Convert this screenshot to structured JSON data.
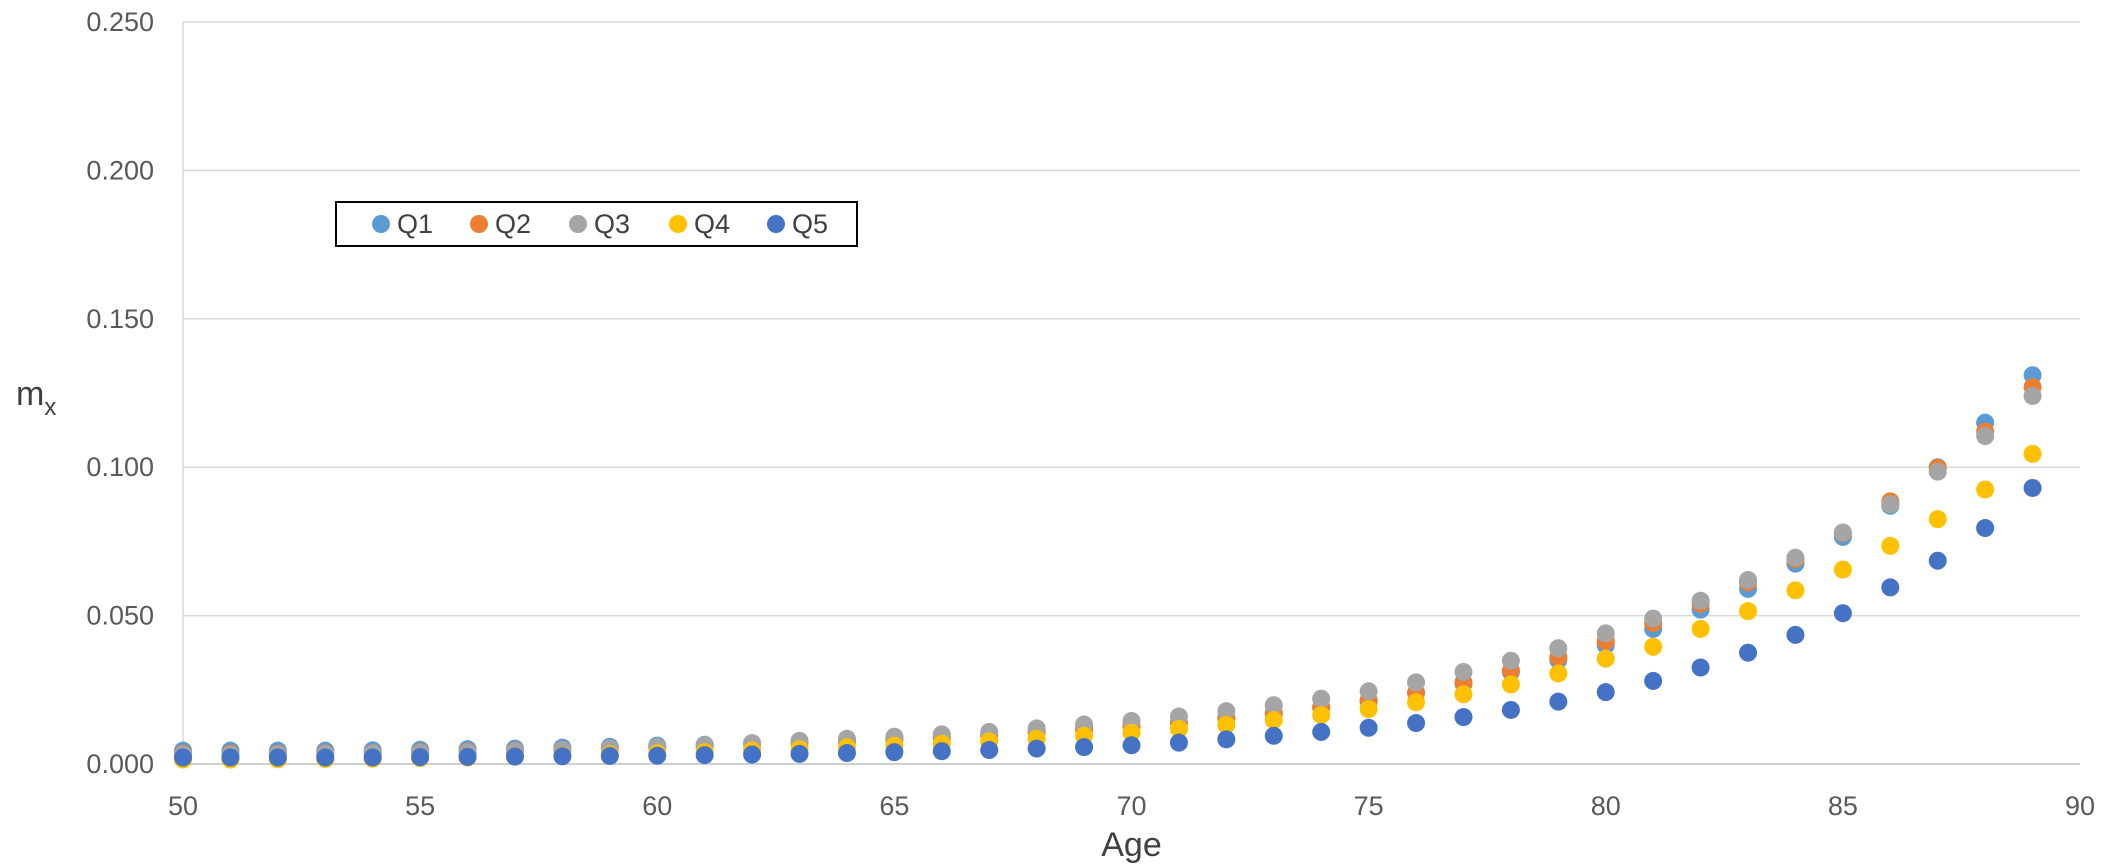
{
  "chart_data": {
    "type": "scatter",
    "title": "",
    "xlabel": "Age",
    "ylabel_main": "m",
    "ylabel_sub": "x",
    "xlim": [
      50,
      90
    ],
    "ylim": [
      0,
      0.25
    ],
    "x_ticks": [
      "50",
      "55",
      "60",
      "65",
      "70",
      "75",
      "80",
      "85",
      "90"
    ],
    "y_ticks": [
      "0.000",
      "0.050",
      "0.100",
      "0.150",
      "0.200",
      "0.250"
    ],
    "grid": "horizontal",
    "legend_position": "top-left, inside plot area, boxed",
    "x": [
      50,
      51,
      52,
      53,
      54,
      55,
      56,
      57,
      58,
      59,
      60,
      61,
      62,
      63,
      64,
      65,
      66,
      67,
      68,
      69,
      70,
      71,
      72,
      73,
      74,
      75,
      76,
      77,
      78,
      79,
      80,
      81,
      82,
      83,
      84,
      85,
      86,
      87,
      88,
      89
    ],
    "series": [
      {
        "name": "Q1",
        "color": "#5B9BD5",
        "values": [
          0.0045,
          0.0045,
          0.0045,
          0.0045,
          0.0046,
          0.0048,
          0.005,
          0.0052,
          0.0055,
          0.0058,
          0.0062,
          0.0065,
          0.007,
          0.0075,
          0.008,
          0.0085,
          0.009,
          0.0098,
          0.0108,
          0.0118,
          0.0128,
          0.014,
          0.0155,
          0.017,
          0.019,
          0.021,
          0.024,
          0.027,
          0.031,
          0.035,
          0.04,
          0.0455,
          0.052,
          0.059,
          0.0675,
          0.0765,
          0.087,
          0.1,
          0.115,
          0.131
        ]
      },
      {
        "name": "Q2",
        "color": "#ED7D31",
        "values": [
          0.0035,
          0.0035,
          0.0035,
          0.0036,
          0.0037,
          0.004,
          0.0042,
          0.0045,
          0.0048,
          0.0052,
          0.0056,
          0.006,
          0.0065,
          0.007,
          0.0076,
          0.0082,
          0.009,
          0.0098,
          0.0107,
          0.0117,
          0.0128,
          0.014,
          0.0155,
          0.0172,
          0.0192,
          0.0215,
          0.024,
          0.0275,
          0.0315,
          0.036,
          0.0415,
          0.0475,
          0.054,
          0.0612,
          0.069,
          0.0778,
          0.0885,
          0.0998,
          0.112,
          0.127
        ]
      },
      {
        "name": "Q3",
        "color": "#A5A5A5",
        "values": [
          0.0032,
          0.0032,
          0.0033,
          0.0034,
          0.0036,
          0.0038,
          0.004,
          0.0044,
          0.0048,
          0.0053,
          0.0058,
          0.0064,
          0.007,
          0.0078,
          0.0085,
          0.0092,
          0.01,
          0.0108,
          0.012,
          0.0133,
          0.0145,
          0.016,
          0.0178,
          0.0198,
          0.022,
          0.0245,
          0.0275,
          0.031,
          0.0348,
          0.039,
          0.044,
          0.049,
          0.055,
          0.062,
          0.0695,
          0.078,
          0.0875,
          0.0985,
          0.1105,
          0.124
        ]
      },
      {
        "name": "Q4",
        "color": "#FFC000",
        "values": [
          0.0015,
          0.0015,
          0.0016,
          0.0017,
          0.0018,
          0.002,
          0.0022,
          0.0025,
          0.0028,
          0.0032,
          0.0036,
          0.004,
          0.0045,
          0.005,
          0.0056,
          0.0062,
          0.0068,
          0.0076,
          0.0085,
          0.0095,
          0.0105,
          0.0118,
          0.0132,
          0.0148,
          0.0165,
          0.0185,
          0.0208,
          0.0235,
          0.0268,
          0.0305,
          0.0355,
          0.0395,
          0.0455,
          0.0515,
          0.0585,
          0.0655,
          0.0735,
          0.0825,
          0.0925,
          0.1045
        ]
      },
      {
        "name": "Q5",
        "color": "#4472C4",
        "values": [
          0.0022,
          0.0022,
          0.0022,
          0.0022,
          0.0022,
          0.0023,
          0.0024,
          0.0025,
          0.0026,
          0.0027,
          0.0028,
          0.003,
          0.0032,
          0.0034,
          0.0037,
          0.004,
          0.0043,
          0.0047,
          0.0052,
          0.0057,
          0.0063,
          0.0072,
          0.0083,
          0.0095,
          0.0108,
          0.0122,
          0.0138,
          0.0158,
          0.0182,
          0.021,
          0.0242,
          0.028,
          0.0325,
          0.0375,
          0.0435,
          0.0508,
          0.0595,
          0.0685,
          0.0795,
          0.093
        ]
      }
    ]
  }
}
